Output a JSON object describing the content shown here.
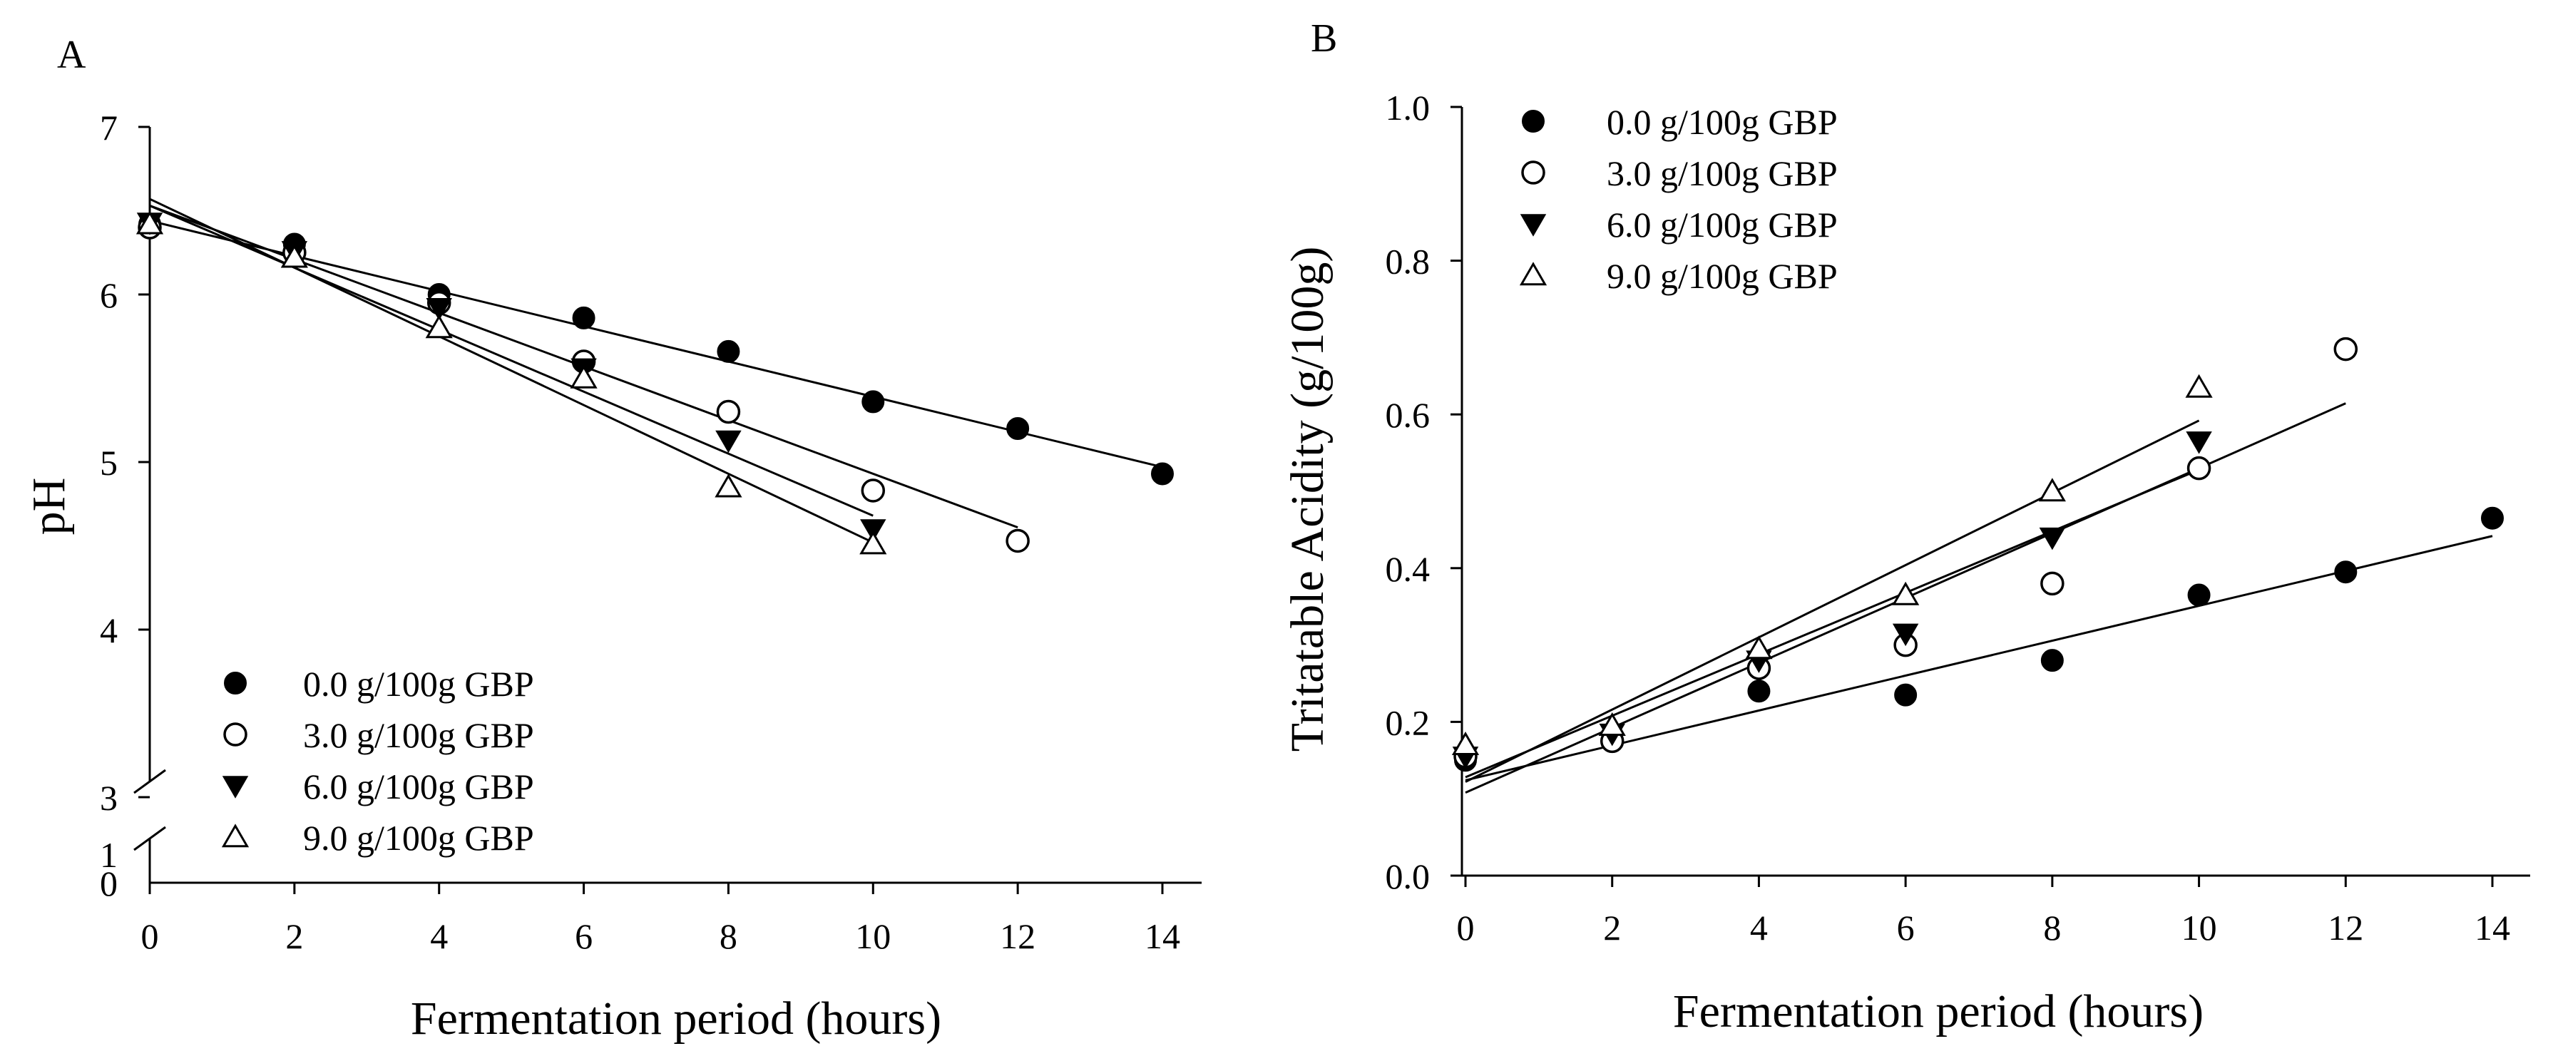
{
  "chart_data": [
    {
      "panel_label": "A",
      "type": "scatter",
      "xlabel": "Fermentation period (hours)",
      "ylabel": "pH",
      "xlim": [
        0,
        14.5
      ],
      "xticks": [
        "0",
        "2",
        "4",
        "6",
        "8",
        "10",
        "12",
        "14"
      ],
      "yticks": [
        "0",
        "1",
        "3",
        "4",
        "5",
        "6",
        "7"
      ],
      "axis_break": "between 1 and 3",
      "legend_position": "bottom-left",
      "series": [
        {
          "name": "0.0 g/100g GBP",
          "marker": "filled-circle",
          "x": [
            0,
            2,
            4,
            6,
            8,
            10,
            12,
            14
          ],
          "y": [
            6.42,
            6.3,
            6.0,
            5.86,
            5.66,
            5.36,
            5.2,
            4.93
          ],
          "fit": {
            "slope": -0.105,
            "intercept": 6.44,
            "x_range": [
              0,
              14
            ]
          }
        },
        {
          "name": "3.0 g/100g GBP",
          "marker": "open-circle",
          "x": [
            0,
            2,
            4,
            6,
            8,
            10,
            12
          ],
          "y": [
            6.4,
            6.25,
            5.95,
            5.6,
            5.3,
            4.83,
            4.53
          ],
          "fit": {
            "slope": -0.16,
            "intercept": 6.53,
            "x_range": [
              0,
              12
            ]
          }
        },
        {
          "name": "6.0 g/100g GBP",
          "marker": "filled-triangle-down",
          "x": [
            0,
            2,
            4,
            6,
            8,
            10
          ],
          "y": [
            6.43,
            6.26,
            5.92,
            5.56,
            5.13,
            4.6
          ],
          "fit": {
            "slope": -0.185,
            "intercept": 6.53,
            "x_range": [
              0,
              10
            ]
          }
        },
        {
          "name": "9.0 g/100g GBP",
          "marker": "open-triangle-up",
          "x": [
            0,
            2,
            4,
            6,
            8,
            10
          ],
          "y": [
            6.42,
            6.22,
            5.8,
            5.5,
            4.85,
            4.51
          ],
          "fit": {
            "slope": -0.205,
            "intercept": 6.57,
            "x_range": [
              0,
              10
            ]
          }
        }
      ]
    },
    {
      "panel_label": "B",
      "type": "scatter",
      "xlabel": "Fermentation period (hours)",
      "ylabel": "Tritatable Acidity (g/100g)",
      "xlim": [
        -0.1,
        14.5
      ],
      "ylim": [
        0.0,
        1.0
      ],
      "xticks": [
        "0",
        "2",
        "4",
        "6",
        "8",
        "10",
        "12",
        "14"
      ],
      "yticks": [
        "0.0",
        "0.2",
        "0.4",
        "0.6",
        "0.8",
        "1.0"
      ],
      "legend_position": "top-left",
      "series": [
        {
          "name": "0.0 g/100g GBP",
          "marker": "filled-circle",
          "x": [
            0,
            2,
            4,
            6,
            8,
            10,
            12,
            14
          ],
          "y": [
            0.15,
            0.175,
            0.24,
            0.235,
            0.28,
            0.365,
            0.395,
            0.465
          ],
          "fit": {
            "slope": 0.0227,
            "intercept": 0.124,
            "x_range": [
              0,
              14
            ]
          }
        },
        {
          "name": "3.0 g/100g GBP",
          "marker": "open-circle",
          "x": [
            0,
            2,
            4,
            6,
            8,
            10,
            12
          ],
          "y": [
            0.155,
            0.175,
            0.27,
            0.3,
            0.38,
            0.53,
            0.685
          ],
          "fit": {
            "slope": 0.0422,
            "intercept": 0.108,
            "x_range": [
              0,
              12
            ]
          }
        },
        {
          "name": "6.0 g/100g GBP",
          "marker": "filled-triangle-down",
          "x": [
            0,
            2,
            4,
            6,
            8,
            10
          ],
          "y": [
            0.155,
            0.185,
            0.28,
            0.315,
            0.44,
            0.565
          ],
          "fit": {
            "slope": 0.04,
            "intercept": 0.128,
            "x_range": [
              0,
              10
            ]
          }
        },
        {
          "name": "9.0 g/100g GBP",
          "marker": "open-triangle-up",
          "x": [
            0,
            2,
            4,
            6,
            8,
            10
          ],
          "y": [
            0.17,
            0.195,
            0.295,
            0.365,
            0.5,
            0.635
          ],
          "fit": {
            "slope": 0.047,
            "intercept": 0.122,
            "x_range": [
              0,
              10
            ]
          }
        }
      ]
    }
  ]
}
